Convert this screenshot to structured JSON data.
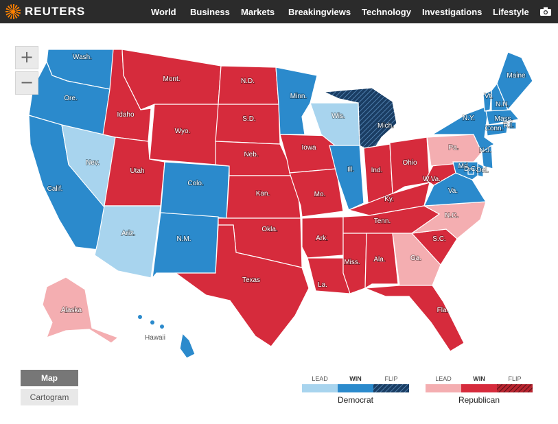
{
  "header": {
    "brand": "REUTERS",
    "nav": [
      "World",
      "Business",
      "Markets",
      "Breakingviews",
      "Technology",
      "Investigations",
      "Lifestyle"
    ],
    "camera_icon": "camera-icon"
  },
  "zoom": {
    "in_label": "+",
    "out_label": "−"
  },
  "view_toggle": {
    "map_label": "Map",
    "cartogram_label": "Cartogram",
    "selected": "Map"
  },
  "colors": {
    "dem_lead": "#a8d4ee",
    "dem_win": "#2b8acc",
    "dem_flip": "#1a3d63",
    "rep_lead": "#f4aeb1",
    "rep_win": "#d62b3c",
    "rep_flip": "#b8242f"
  },
  "legend": {
    "democrat": {
      "name": "Democrat",
      "lead": "LEAD",
      "win": "WIN",
      "flip": "FLIP"
    },
    "republican": {
      "name": "Republican",
      "lead": "LEAD",
      "win": "WIN",
      "flip": "FLIP"
    }
  },
  "states": [
    {
      "label": "Wash.",
      "status": "dem_win"
    },
    {
      "label": "Ore.",
      "status": "dem_win"
    },
    {
      "label": "Calif.",
      "status": "dem_win"
    },
    {
      "label": "Nev.",
      "status": "dem_lead"
    },
    {
      "label": "Idaho",
      "status": "rep_win"
    },
    {
      "label": "Mont.",
      "status": "rep_win"
    },
    {
      "label": "Wyo.",
      "status": "rep_win"
    },
    {
      "label": "Utah",
      "status": "rep_win"
    },
    {
      "label": "Ariz.",
      "status": "dem_lead"
    },
    {
      "label": "Colo.",
      "status": "dem_win"
    },
    {
      "label": "N.M.",
      "status": "dem_win"
    },
    {
      "label": "N.D.",
      "status": "rep_win"
    },
    {
      "label": "S.D.",
      "status": "rep_win"
    },
    {
      "label": "Neb.",
      "status": "rep_win"
    },
    {
      "label": "Kan.",
      "status": "rep_win"
    },
    {
      "label": "Okla.",
      "status": "rep_win"
    },
    {
      "label": "Texas",
      "status": "rep_win"
    },
    {
      "label": "Minn.",
      "status": "dem_win"
    },
    {
      "label": "Iowa",
      "status": "rep_win"
    },
    {
      "label": "Mo.",
      "status": "rep_win"
    },
    {
      "label": "Ark.",
      "status": "rep_win"
    },
    {
      "label": "La.",
      "status": "rep_win"
    },
    {
      "label": "Wis.",
      "status": "dem_lead"
    },
    {
      "label": "Ill.",
      "status": "dem_win"
    },
    {
      "label": "Mich.",
      "status": "dem_flip"
    },
    {
      "label": "Ind.",
      "status": "rep_win"
    },
    {
      "label": "Ohio",
      "status": "rep_win"
    },
    {
      "label": "Ky.",
      "status": "rep_win"
    },
    {
      "label": "Tenn.",
      "status": "rep_win"
    },
    {
      "label": "Miss.",
      "status": "rep_win"
    },
    {
      "label": "Ala.",
      "status": "rep_win"
    },
    {
      "label": "Ga.",
      "status": "rep_lead"
    },
    {
      "label": "Fla.",
      "status": "rep_win"
    },
    {
      "label": "S.C.",
      "status": "rep_win"
    },
    {
      "label": "N.C.",
      "status": "rep_lead"
    },
    {
      "label": "Va.",
      "status": "dem_win"
    },
    {
      "label": "W.Va.",
      "status": "rep_win"
    },
    {
      "label": "Pa.",
      "status": "rep_lead"
    },
    {
      "label": "N.Y.",
      "status": "dem_win"
    },
    {
      "label": "Vt.",
      "status": "dem_win"
    },
    {
      "label": "N.H.",
      "status": "dem_win"
    },
    {
      "label": "Maine",
      "status": "dem_win"
    },
    {
      "label": "Mass.",
      "status": "dem_win"
    },
    {
      "label": "R.I.",
      "status": "dem_win"
    },
    {
      "label": "Conn.",
      "status": "dem_win"
    },
    {
      "label": "N.J.",
      "status": "dem_win"
    },
    {
      "label": "Del.",
      "status": "dem_win"
    },
    {
      "label": "Md.",
      "status": "dem_win"
    },
    {
      "label": "D.C.",
      "status": "dem_win"
    },
    {
      "label": "Alaska",
      "status": "rep_lead"
    },
    {
      "label": "Hawaii",
      "status": "dem_win"
    }
  ]
}
